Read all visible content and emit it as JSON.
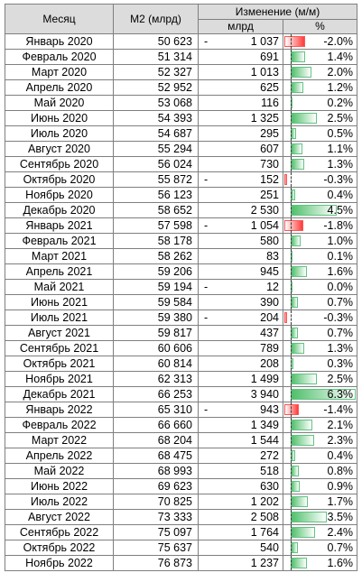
{
  "header": {
    "month": "Месяц",
    "m2": "M2 (млрд)",
    "change": "Изменение (м/м)",
    "mlrd": "млрд",
    "pct": "%"
  },
  "colors": {
    "positive_bar": "#63c384",
    "negative_bar": "#ff3b3b"
  },
  "rows": [
    {
      "month": "Январь 2020",
      "m2": "50 623",
      "sign": "-",
      "abs": "1 037",
      "pct": "-2.0%",
      "pv": -2.0
    },
    {
      "month": "Февраль 2020",
      "m2": "51 314",
      "sign": "",
      "abs": "691",
      "pct": "1.4%",
      "pv": 1.4
    },
    {
      "month": "Март 2020",
      "m2": "52 327",
      "sign": "",
      "abs": "1 013",
      "pct": "2.0%",
      "pv": 2.0
    },
    {
      "month": "Апрель 2020",
      "m2": "52 952",
      "sign": "",
      "abs": "625",
      "pct": "1.2%",
      "pv": 1.2
    },
    {
      "month": "Май 2020",
      "m2": "53 068",
      "sign": "",
      "abs": "116",
      "pct": "0.2%",
      "pv": 0.2
    },
    {
      "month": "Июнь 2020",
      "m2": "54 393",
      "sign": "",
      "abs": "1 325",
      "pct": "2.5%",
      "pv": 2.5
    },
    {
      "month": "Июль 2020",
      "m2": "54 687",
      "sign": "",
      "abs": "295",
      "pct": "0.5%",
      "pv": 0.5
    },
    {
      "month": "Август 2020",
      "m2": "55 294",
      "sign": "",
      "abs": "607",
      "pct": "1.1%",
      "pv": 1.1
    },
    {
      "month": "Сентябрь 2020",
      "m2": "56 024",
      "sign": "",
      "abs": "730",
      "pct": "1.3%",
      "pv": 1.3
    },
    {
      "month": "Октябрь 2020",
      "m2": "55 872",
      "sign": "-",
      "abs": "152",
      "pct": "-0.3%",
      "pv": -0.3
    },
    {
      "month": "Ноябрь 2020",
      "m2": "56 123",
      "sign": "",
      "abs": "251",
      "pct": "0.4%",
      "pv": 0.4
    },
    {
      "month": "Декабрь 2020",
      "m2": "58 652",
      "sign": "",
      "abs": "2 530",
      "pct": "4.5%",
      "pv": 4.5
    },
    {
      "month": "Январь 2021",
      "m2": "57 598",
      "sign": "-",
      "abs": "1 054",
      "pct": "-1.8%",
      "pv": -1.8
    },
    {
      "month": "Февраль 2021",
      "m2": "58 178",
      "sign": "",
      "abs": "580",
      "pct": "1.0%",
      "pv": 1.0
    },
    {
      "month": "Март 2021",
      "m2": "58 262",
      "sign": "",
      "abs": "83",
      "pct": "0.1%",
      "pv": 0.1
    },
    {
      "month": "Апрель 2021",
      "m2": "59 206",
      "sign": "",
      "abs": "945",
      "pct": "1.6%",
      "pv": 1.6
    },
    {
      "month": "Май 2021",
      "m2": "59 194",
      "sign": "-",
      "abs": "12",
      "pct": "0.0%",
      "pv": 0.0
    },
    {
      "month": "Июнь 2021",
      "m2": "59 584",
      "sign": "",
      "abs": "390",
      "pct": "0.7%",
      "pv": 0.7
    },
    {
      "month": "Июль 2021",
      "m2": "59 380",
      "sign": "-",
      "abs": "204",
      "pct": "-0.3%",
      "pv": -0.3
    },
    {
      "month": "Август 2021",
      "m2": "59 817",
      "sign": "",
      "abs": "437",
      "pct": "0.7%",
      "pv": 0.7
    },
    {
      "month": "Сентябрь 2021",
      "m2": "60 606",
      "sign": "",
      "abs": "789",
      "pct": "1.3%",
      "pv": 1.3
    },
    {
      "month": "Октябрь 2021",
      "m2": "60 814",
      "sign": "",
      "abs": "208",
      "pct": "0.3%",
      "pv": 0.3
    },
    {
      "month": "Ноябрь 2021",
      "m2": "62 313",
      "sign": "",
      "abs": "1 499",
      "pct": "2.5%",
      "pv": 2.5
    },
    {
      "month": "Декабрь 2021",
      "m2": "66 253",
      "sign": "",
      "abs": "3 940",
      "pct": "6.3%",
      "pv": 6.3
    },
    {
      "month": "Январь 2022",
      "m2": "65 310",
      "sign": "-",
      "abs": "943",
      "pct": "-1.4%",
      "pv": -1.4
    },
    {
      "month": "Февраль 2022",
      "m2": "66 660",
      "sign": "",
      "abs": "1 349",
      "pct": "2.1%",
      "pv": 2.1
    },
    {
      "month": "Март 2022",
      "m2": "68 204",
      "sign": "",
      "abs": "1 544",
      "pct": "2.3%",
      "pv": 2.3
    },
    {
      "month": "Апрель 2022",
      "m2": "68 475",
      "sign": "",
      "abs": "272",
      "pct": "0.4%",
      "pv": 0.4
    },
    {
      "month": "Май 2022",
      "m2": "68 993",
      "sign": "",
      "abs": "518",
      "pct": "0.8%",
      "pv": 0.8
    },
    {
      "month": "Июнь 2022",
      "m2": "69 623",
      "sign": "",
      "abs": "630",
      "pct": "0.9%",
      "pv": 0.9
    },
    {
      "month": "Июль 2022",
      "m2": "70 825",
      "sign": "",
      "abs": "1 202",
      "pct": "1.7%",
      "pv": 1.7
    },
    {
      "month": "Август 2022",
      "m2": "73 333",
      "sign": "",
      "abs": "2 508",
      "pct": "3.5%",
      "pv": 3.5
    },
    {
      "month": "Сентябрь 2022",
      "m2": "75 097",
      "sign": "",
      "abs": "1 764",
      "pct": "2.4%",
      "pv": 2.4
    },
    {
      "month": "Октябрь 2022",
      "m2": "75 637",
      "sign": "",
      "abs": "540",
      "pct": "0.7%",
      "pv": 0.7
    },
    {
      "month": "Ноябрь 2022",
      "m2": "76 873",
      "sign": "",
      "abs": "1 237",
      "pct": "1.6%",
      "pv": 1.6
    }
  ]
}
